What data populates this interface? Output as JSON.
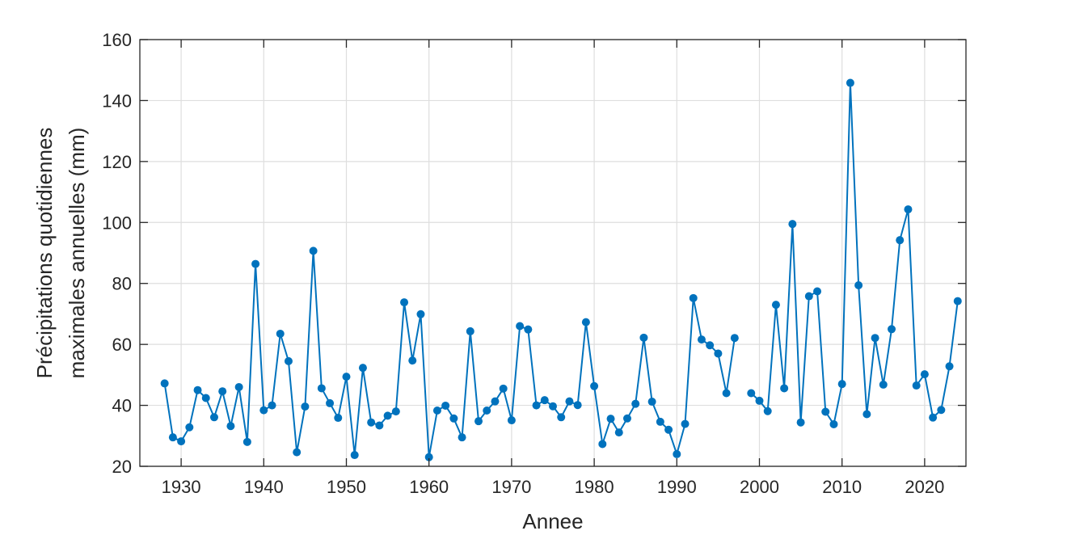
{
  "chart_data": {
    "type": "line",
    "xlabel": "Annee",
    "ylabel_lines": [
      "Précipitations quotidiennes",
      "maximales annuelles (mm)"
    ],
    "xlim": [
      1925,
      2025
    ],
    "ylim": [
      20,
      160
    ],
    "xticks": [
      1930,
      1940,
      1950,
      1960,
      1970,
      1980,
      1990,
      2000,
      2010,
      2020
    ],
    "yticks": [
      20,
      40,
      60,
      80,
      100,
      120,
      140,
      160
    ],
    "grid": true,
    "color": "#0072BD",
    "series": [
      {
        "x": [
          1928,
          1929,
          1930,
          1931,
          1932,
          1933,
          1934,
          1935,
          1936,
          1937,
          1938,
          1939,
          1940,
          1941,
          1942,
          1943,
          1944,
          1945,
          1946,
          1947,
          1948,
          1949,
          1950,
          1951,
          1952,
          1953,
          1954,
          1955,
          1956,
          1957,
          1958,
          1959,
          1960,
          1961,
          1962,
          1963,
          1964,
          1965,
          1966,
          1967,
          1968,
          1969,
          1970,
          1971,
          1972,
          1973,
          1974,
          1975,
          1976,
          1977,
          1978,
          1979,
          1980,
          1981,
          1982,
          1983,
          1984,
          1985,
          1986,
          1987,
          1988,
          1989,
          1990,
          1991,
          1992,
          1993,
          1994,
          1995,
          1996,
          1997,
          1998,
          1999,
          2000,
          2001,
          2002,
          2003,
          2004,
          2005,
          2006,
          2007,
          2008,
          2009,
          2010,
          2011,
          2012,
          2013,
          2014,
          2015,
          2016,
          2017,
          2018,
          2019,
          2020,
          2021,
          2022,
          2023,
          2024
        ],
        "y": [
          47.2,
          29.5,
          28.2,
          32.8,
          45.0,
          42.4,
          36.1,
          44.6,
          33.2,
          46.0,
          28.0,
          86.4,
          38.4,
          40.0,
          63.5,
          54.5,
          24.6,
          39.6,
          90.7,
          45.6,
          40.7,
          35.9,
          49.4,
          23.7,
          52.3,
          34.4,
          33.4,
          36.6,
          38.0,
          73.8,
          54.7,
          69.9,
          23.0,
          38.3,
          39.9,
          35.7,
          29.5,
          64.3,
          34.8,
          38.3,
          41.3,
          45.5,
          35.1,
          66.0,
          64.9,
          40.0,
          41.7,
          39.7,
          36.1,
          41.3,
          40.1,
          67.3,
          46.3,
          27.3,
          35.6,
          31.1,
          35.7,
          40.5,
          62.2,
          41.2,
          34.6,
          32.0,
          24.0,
          33.9,
          75.2,
          61.6,
          59.7,
          57.0,
          44.0,
          62.1,
          null,
          44.0,
          41.5,
          38.1,
          73.0,
          45.6,
          99.5,
          34.4,
          75.8,
          77.4,
          37.9,
          33.8,
          47.0,
          145.8,
          79.4,
          37.1,
          62.1,
          46.8,
          65.0,
          94.2,
          104.3,
          46.5,
          50.2,
          36.0,
          38.5,
          52.8,
          74.2
        ]
      }
    ]
  }
}
